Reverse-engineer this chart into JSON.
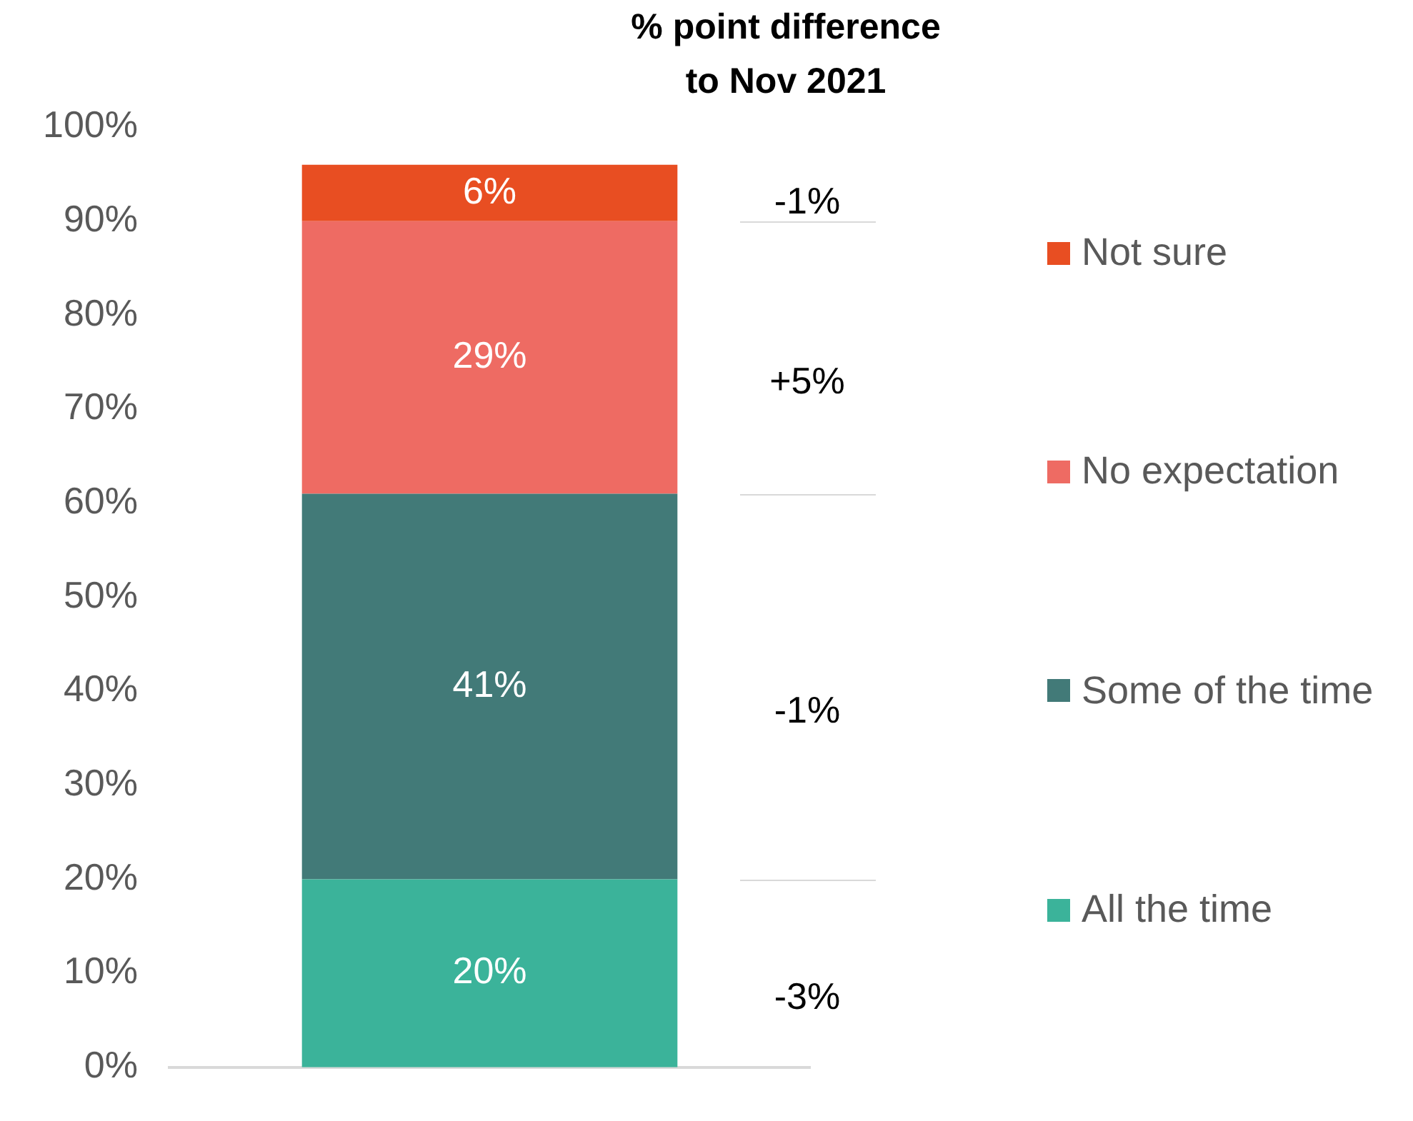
{
  "chart_data": {
    "type": "bar",
    "stacked": true,
    "title": "% point difference\nto Nov 2021",
    "categories": [
      null
    ],
    "series": [
      {
        "name": "All the time",
        "color": "#3bb39a",
        "values": [
          20
        ],
        "value_labels": [
          "20%"
        ]
      },
      {
        "name": "Some of the time",
        "color": "#427a78",
        "values": [
          41
        ],
        "value_labels": [
          "41%"
        ]
      },
      {
        "name": "No expectation",
        "color": "#ee6b63",
        "values": [
          29
        ],
        "value_labels": [
          "29%"
        ]
      },
      {
        "name": "Not sure",
        "color": "#e84e22",
        "values": [
          6
        ],
        "value_labels": [
          "6%"
        ]
      }
    ],
    "annotations": [
      "-3%",
      "-1%",
      "+5%",
      "-1%"
    ],
    "ylim": [
      0,
      100
    ],
    "yticks": [
      {
        "value": 0,
        "label": "0%"
      },
      {
        "value": 10,
        "label": "10%"
      },
      {
        "value": 20,
        "label": "20%"
      },
      {
        "value": 30,
        "label": "30%"
      },
      {
        "value": 40,
        "label": "40%"
      },
      {
        "value": 50,
        "label": "50%"
      },
      {
        "value": 60,
        "label": "60%"
      },
      {
        "value": 70,
        "label": "70%"
      },
      {
        "value": 80,
        "label": "80%"
      },
      {
        "value": 90,
        "label": "90%"
      },
      {
        "value": 100,
        "label": "100%"
      }
    ],
    "grid": false,
    "legend": "right",
    "tick_labels": "y"
  }
}
